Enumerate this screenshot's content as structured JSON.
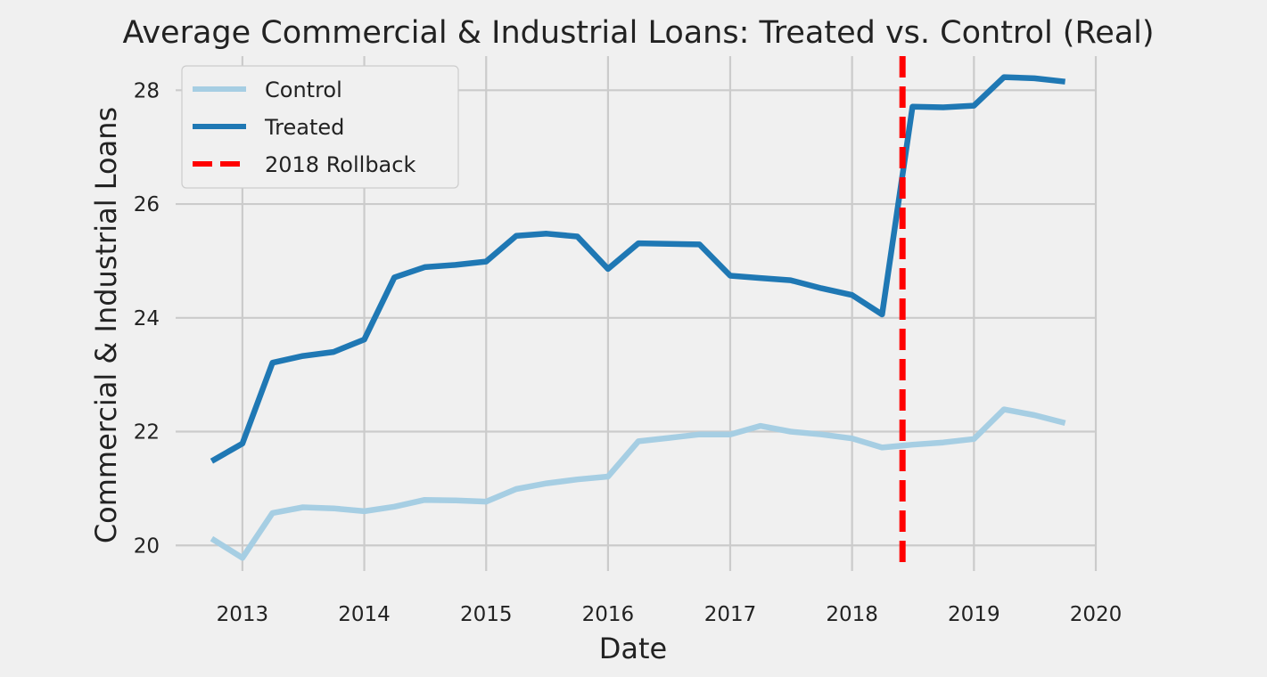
{
  "chart_data": {
    "type": "line",
    "title": "Average Commercial & Industrial Loans: Treated vs. Control (Real)",
    "xlabel": "Date",
    "ylabel": "Commercial & Industrial Loans",
    "xlim": [
      "2012-06-15",
      "2020-01-01"
    ],
    "ylim": [
      19.55,
      28.6
    ],
    "x_ticks": [
      "2013-01-01",
      "2014-01-01",
      "2015-01-01",
      "2016-01-01",
      "2017-01-01",
      "2018-01-01",
      "2019-01-01",
      "2020-01-01"
    ],
    "x_tick_labels": [
      "2013",
      "2014",
      "2015",
      "2016",
      "2017",
      "2018",
      "2019",
      "2020"
    ],
    "y_ticks": [
      20,
      22,
      24,
      26,
      28
    ],
    "y_tick_labels": [
      "20",
      "22",
      "24",
      "26",
      "28"
    ],
    "grid": true,
    "legend_position": "top-left",
    "x": [
      "2012-10-01",
      "2013-01-01",
      "2013-04-01",
      "2013-07-01",
      "2013-10-01",
      "2014-01-01",
      "2014-04-01",
      "2014-07-01",
      "2014-10-01",
      "2015-01-01",
      "2015-04-01",
      "2015-07-01",
      "2015-10-01",
      "2016-01-01",
      "2016-04-01",
      "2016-07-01",
      "2016-10-01",
      "2017-01-01",
      "2017-04-01",
      "2017-07-01",
      "2017-10-01",
      "2018-01-01",
      "2018-04-01",
      "2018-07-01",
      "2018-10-01",
      "2019-01-01",
      "2019-04-01",
      "2019-07-01",
      "2019-10-01"
    ],
    "series": [
      {
        "name": "Control",
        "color": "#a6cee3",
        "values": [
          20.12,
          19.78,
          20.57,
          20.67,
          20.65,
          20.6,
          20.68,
          20.8,
          20.79,
          20.77,
          20.99,
          21.09,
          21.16,
          21.21,
          21.83,
          21.89,
          21.95,
          21.95,
          22.1,
          22.0,
          21.95,
          21.88,
          21.72,
          21.77,
          21.81,
          21.87,
          22.39,
          22.29,
          22.15
        ]
      },
      {
        "name": "Treated",
        "color": "#1f78b4",
        "values": [
          21.48,
          21.79,
          23.21,
          23.33,
          23.4,
          23.62,
          24.71,
          24.89,
          24.93,
          24.99,
          25.44,
          25.48,
          25.43,
          24.86,
          25.31,
          25.3,
          25.29,
          24.74,
          24.7,
          24.66,
          24.52,
          24.4,
          24.06,
          27.71,
          27.7,
          27.73,
          28.23,
          28.21,
          28.15
        ]
      }
    ],
    "vline": {
      "name": "2018 Rollback",
      "x": "2018-06-01",
      "color": "#ff0000",
      "style": "dashed"
    }
  }
}
